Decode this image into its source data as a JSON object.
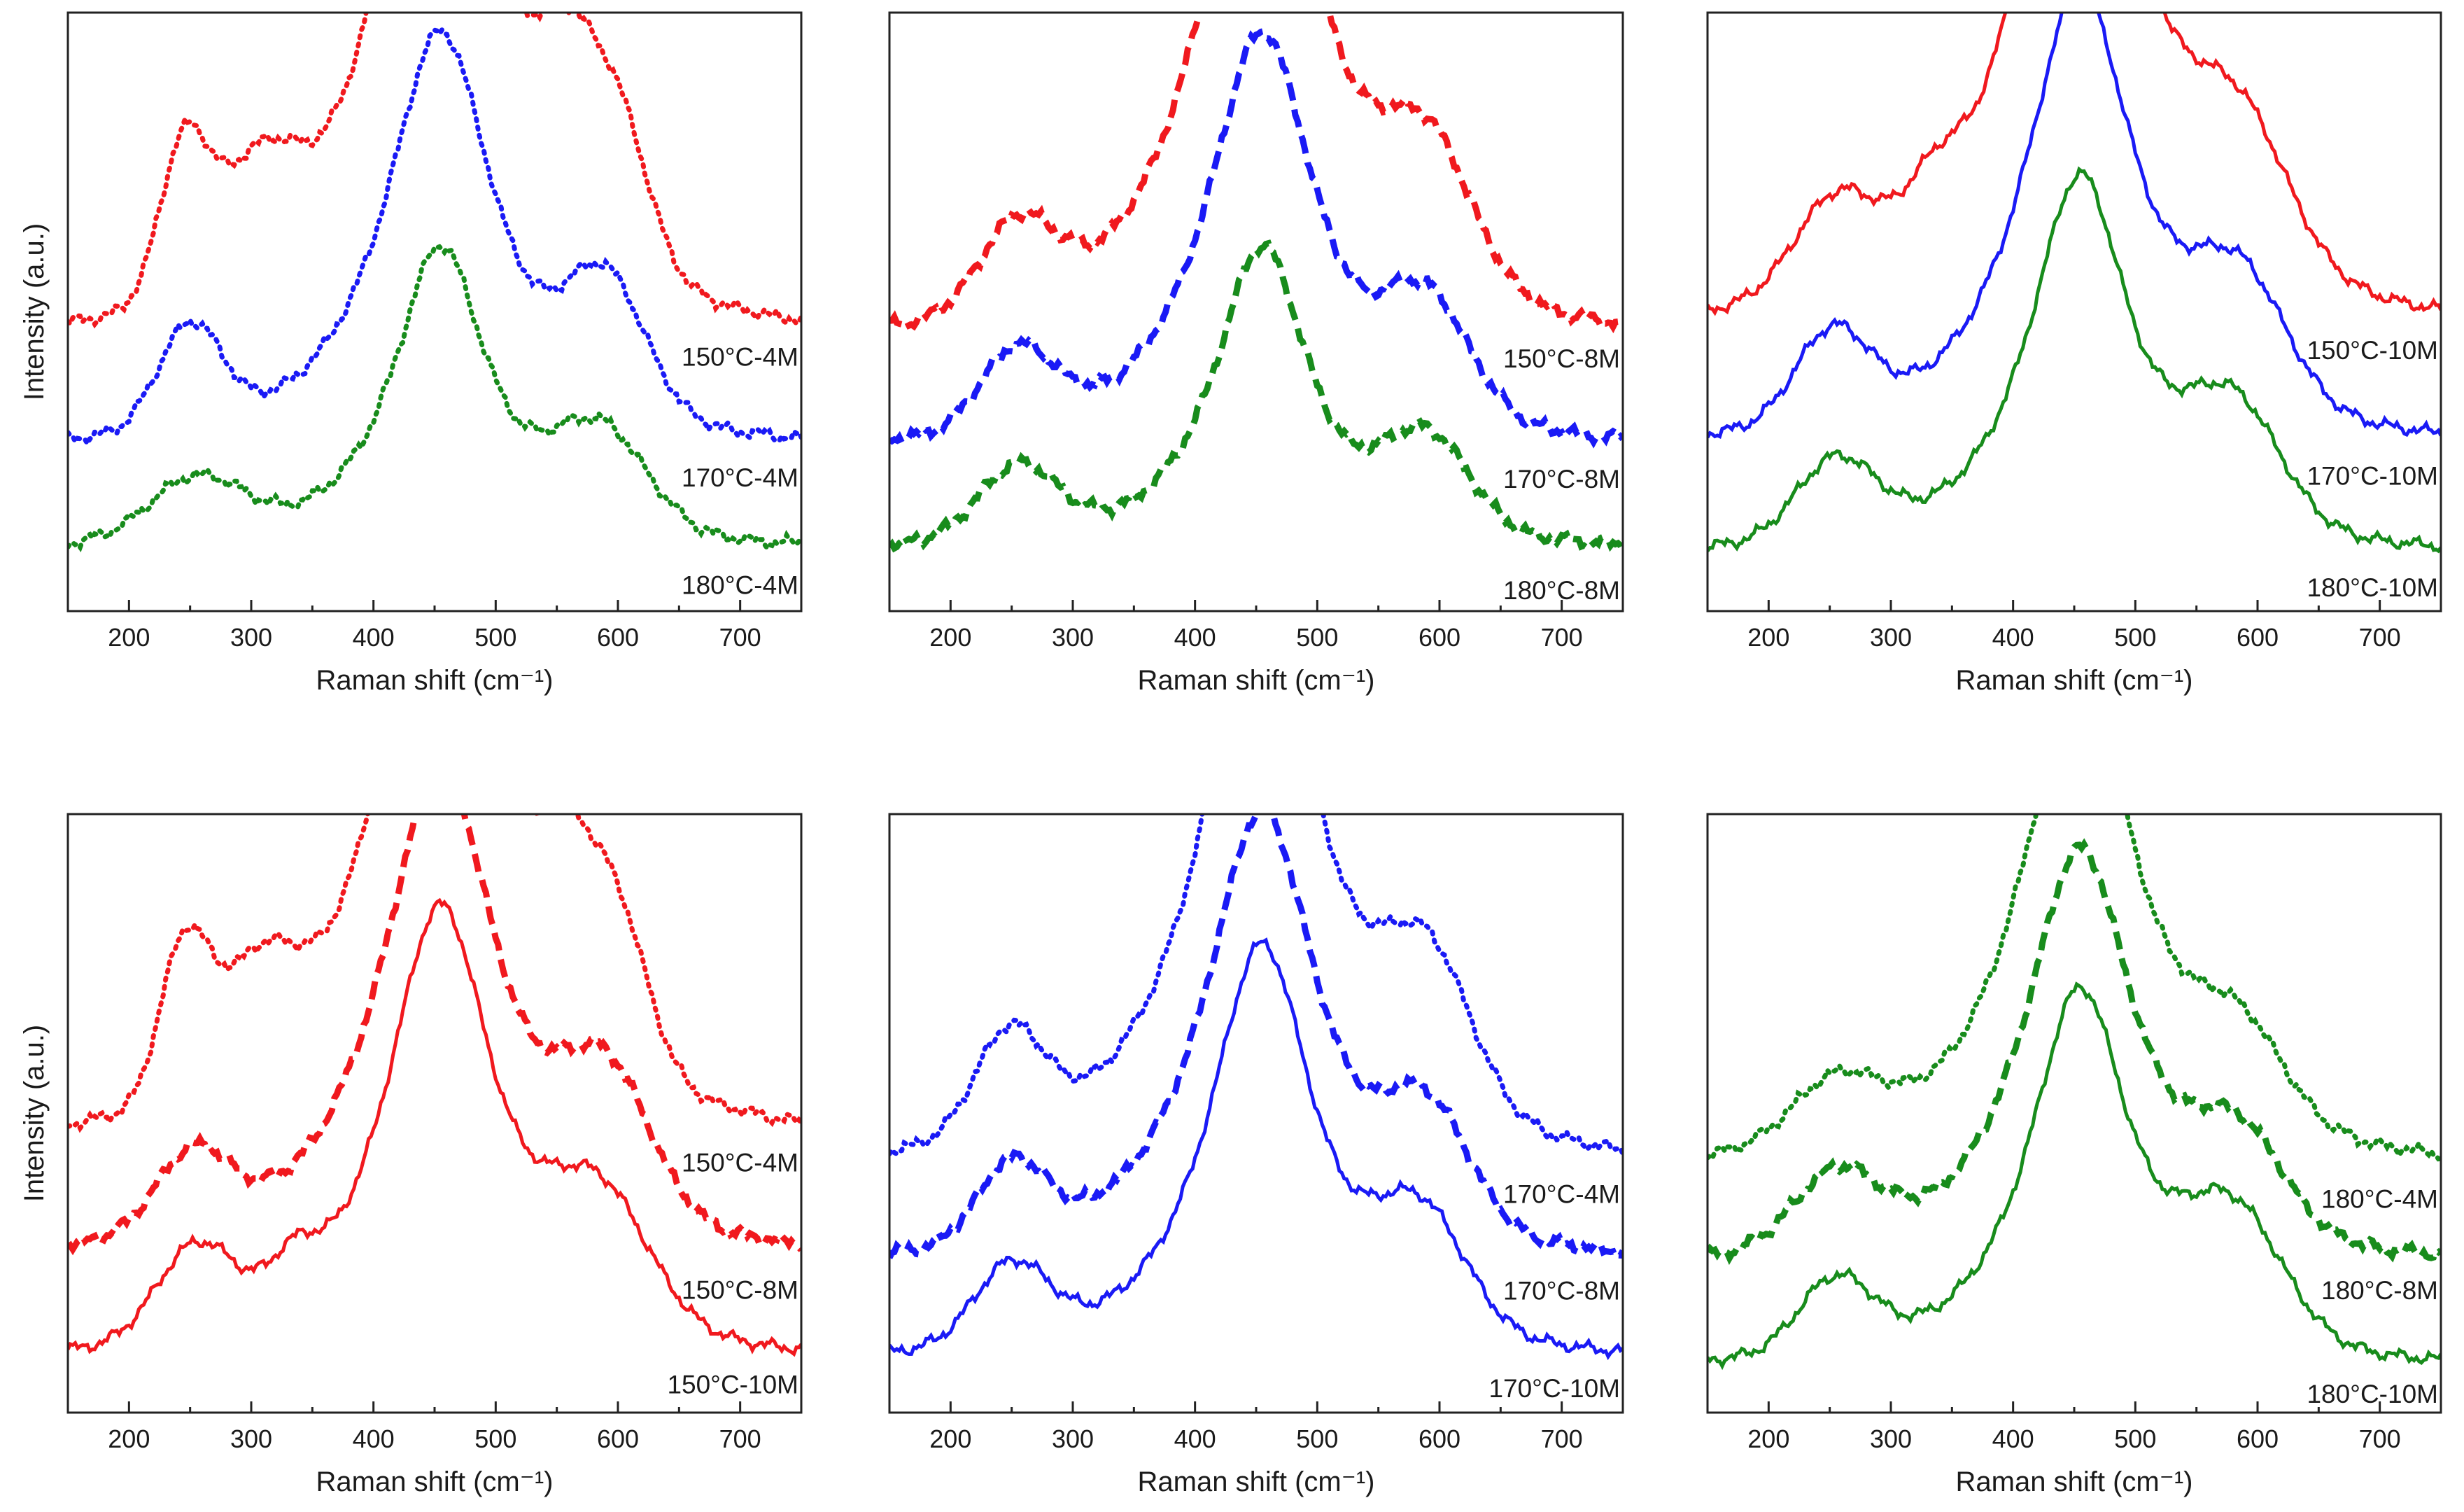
{
  "figure": {
    "description_label": "Raman spectra grid"
  },
  "colors": {
    "red": "#f0191e",
    "blue": "#1a1af5",
    "green": "#188c1c"
  },
  "chart_data": [
    {
      "type": "line",
      "panel": "top-left",
      "xlabel": "Raman shift (cm⁻¹)",
      "ylabel": "Intensity (a.u.)",
      "xlim": [
        150,
        750
      ],
      "ylim": [
        0,
        1
      ],
      "xticks": [
        200,
        300,
        400,
        500,
        600,
        700
      ],
      "series": [
        {
          "name": "150°C-4M",
          "color": "red",
          "style": "dotted",
          "base": 0.44,
          "peaks": [
            {
              "x": 245,
              "h": 0.25,
              "w": 20
            },
            {
              "x": 305,
              "h": 0.18,
              "w": 32
            },
            {
              "x": 555,
              "h": 0.21,
              "w": 22
            },
            {
              "x": 598,
              "h": 0.25,
              "w": 26
            }
          ],
          "core_amp": 0.34,
          "core_w": 62,
          "core_skew": 1.0
        },
        {
          "name": "170°C-4M",
          "color": "blue",
          "style": "dotted",
          "base": 0.265,
          "peaks": [
            {
              "x": 250,
              "h": 0.17,
              "w": 26
            },
            {
              "x": 590,
              "h": 0.21,
              "w": 32
            }
          ],
          "core_amp": 0.22,
          "core_w": 56,
          "core_skew": 1.0
        },
        {
          "name": "180°C-4M",
          "color": "green",
          "style": "dotted",
          "base": 0.1,
          "peaks": [
            {
              "x": 255,
              "h": 0.1,
              "w": 38
            },
            {
              "x": 585,
              "h": 0.16,
              "w": 38
            }
          ],
          "core_amp": 0.16,
          "core_w": 48,
          "core_skew": 1.0
        }
      ]
    },
    {
      "type": "line",
      "panel": "top-middle",
      "xlabel": "Raman shift (cm⁻¹)",
      "ylabel": "",
      "xlim": [
        150,
        750
      ],
      "ylim": [
        0,
        1
      ],
      "xticks": [
        200,
        300,
        400,
        500,
        600,
        700
      ],
      "series": [
        {
          "name": "150°C-8M",
          "color": "red",
          "style": "dashed",
          "base": 0.44,
          "peaks": [
            {
              "x": 255,
              "h": 0.14,
              "w": 30
            },
            {
              "x": 590,
              "h": 0.22,
              "w": 36
            }
          ],
          "core_amp": 0.3,
          "core_w": 62,
          "core_skew": 1.0
        },
        {
          "name": "170°C-8M",
          "color": "blue",
          "style": "dashed",
          "base": 0.265,
          "peaks": [
            {
              "x": 255,
              "h": 0.13,
              "w": 30
            },
            {
              "x": 590,
              "h": 0.18,
              "w": 34
            }
          ],
          "core_amp": 0.22,
          "core_w": 56,
          "core_skew": 1.0
        },
        {
          "name": "180°C-8M",
          "color": "green",
          "style": "dashed",
          "base": 0.1,
          "peaks": [
            {
              "x": 255,
              "h": 0.12,
              "w": 32
            },
            {
              "x": 590,
              "h": 0.15,
              "w": 34
            }
          ],
          "core_amp": 0.16,
          "core_w": 48,
          "core_skew": 1.0
        }
      ]
    },
    {
      "type": "line",
      "panel": "top-right",
      "xlabel": "Raman shift (cm⁻¹)",
      "ylabel": "",
      "xlim": [
        150,
        750
      ],
      "ylim": [
        0,
        1
      ],
      "xticks": [
        200,
        300,
        400,
        500,
        600,
        700
      ],
      "series": [
        {
          "name": "150°C-10M",
          "color": "red",
          "style": "solid",
          "base": 0.46,
          "peaks": [
            {
              "x": 255,
              "h": 0.15,
              "w": 34
            },
            {
              "x": 335,
              "h": 0.08,
              "w": 22
            },
            {
              "x": 585,
              "h": 0.22,
              "w": 40
            }
          ],
          "core_amp": 0.33,
          "core_w": 62,
          "core_skew": 1.0
        },
        {
          "name": "170°C-10M",
          "color": "blue",
          "style": "solid",
          "base": 0.27,
          "peaks": [
            {
              "x": 252,
              "h": 0.15,
              "w": 30
            },
            {
              "x": 585,
              "h": 0.2,
              "w": 38
            }
          ],
          "core_amp": 0.24,
          "core_w": 58,
          "core_skew": 1.0
        },
        {
          "name": "180°C-10M",
          "color": "green",
          "style": "solid",
          "base": 0.09,
          "peaks": [
            {
              "x": 255,
              "h": 0.13,
              "w": 32
            },
            {
              "x": 580,
              "h": 0.19,
              "w": 38
            }
          ],
          "core_amp": 0.2,
          "core_w": 52,
          "core_skew": 1.0
        }
      ]
    },
    {
      "type": "line",
      "panel": "bottom-left",
      "xlabel": "Raman shift (cm⁻¹)",
      "ylabel": "Intensity (a.u.)",
      "xlim": [
        150,
        750
      ],
      "ylim": [
        0,
        1
      ],
      "xticks": [
        200,
        300,
        400,
        500,
        600,
        700
      ],
      "series": [
        {
          "name": "150°C-4M",
          "color": "red",
          "style": "dotted",
          "base": 0.44,
          "peaks": [
            {
              "x": 245,
              "h": 0.25,
              "w": 20
            },
            {
              "x": 305,
              "h": 0.18,
              "w": 32
            },
            {
              "x": 555,
              "h": 0.21,
              "w": 22
            },
            {
              "x": 598,
              "h": 0.25,
              "w": 26
            }
          ],
          "core_amp": 0.34,
          "core_w": 62,
          "core_skew": 1.0
        },
        {
          "name": "150°C-8M",
          "color": "red",
          "style": "dashed",
          "base": 0.25,
          "peaks": [
            {
              "x": 252,
              "h": 0.13,
              "w": 30
            },
            {
              "x": 590,
              "h": 0.22,
              "w": 36
            }
          ],
          "core_amp": 0.26,
          "core_w": 60,
          "core_skew": 1.0
        },
        {
          "name": "150°C-10M",
          "color": "red",
          "style": "solid",
          "base": 0.08,
          "peaks": [
            {
              "x": 255,
              "h": 0.15,
              "w": 32
            },
            {
              "x": 335,
              "h": 0.07,
              "w": 20
            },
            {
              "x": 585,
              "h": 0.2,
              "w": 40
            }
          ],
          "core_amp": 0.24,
          "core_w": 56,
          "core_skew": 1.0
        }
      ]
    },
    {
      "type": "line",
      "panel": "bottom-middle",
      "xlabel": "Raman shift (cm⁻¹)",
      "ylabel": "",
      "xlim": [
        150,
        750
      ],
      "ylim": [
        0,
        1
      ],
      "xticks": [
        200,
        300,
        400,
        500,
        600,
        700
      ],
      "series": [
        {
          "name": "170°C-4M",
          "color": "blue",
          "style": "dotted",
          "base": 0.4,
          "peaks": [
            {
              "x": 248,
              "h": 0.17,
              "w": 28
            },
            {
              "x": 590,
              "h": 0.24,
              "w": 36
            }
          ],
          "core_amp": 0.3,
          "core_w": 62,
          "core_skew": 1.0
        },
        {
          "name": "170°C-8M",
          "color": "blue",
          "style": "dashed",
          "base": 0.24,
          "peaks": [
            {
              "x": 250,
              "h": 0.13,
              "w": 28
            },
            {
              "x": 590,
              "h": 0.18,
              "w": 34
            }
          ],
          "core_amp": 0.24,
          "core_w": 58,
          "core_skew": 1.0
        },
        {
          "name": "170°C-10M",
          "color": "blue",
          "style": "solid",
          "base": 0.08,
          "peaks": [
            {
              "x": 250,
              "h": 0.13,
              "w": 30
            },
            {
              "x": 585,
              "h": 0.18,
              "w": 36
            }
          ],
          "core_amp": 0.22,
          "core_w": 54,
          "core_skew": 1.0
        }
      ]
    },
    {
      "type": "line",
      "panel": "bottom-right",
      "xlabel": "Raman shift (cm⁻¹)",
      "ylabel": "",
      "xlim": [
        150,
        750
      ],
      "ylim": [
        0,
        1
      ],
      "xticks": [
        200,
        300,
        400,
        500,
        600,
        700
      ],
      "series": [
        {
          "name": "180°C-4M",
          "color": "green",
          "style": "dotted",
          "base": 0.4,
          "peaks": [
            {
              "x": 255,
              "h": 0.1,
              "w": 36
            },
            {
              "x": 585,
              "h": 0.14,
              "w": 36
            }
          ],
          "core_amp": 0.26,
          "core_w": 60,
          "core_skew": 1.0
        },
        {
          "name": "180°C-8M",
          "color": "green",
          "style": "dashed",
          "base": 0.24,
          "peaks": [
            {
              "x": 255,
              "h": 0.12,
              "w": 34
            },
            {
              "x": 585,
              "h": 0.15,
              "w": 36
            }
          ],
          "core_amp": 0.22,
          "core_w": 56,
          "core_skew": 1.0
        },
        {
          "name": "180°C-10M",
          "color": "green",
          "style": "solid",
          "base": 0.07,
          "peaks": [
            {
              "x": 255,
              "h": 0.12,
              "w": 30
            },
            {
              "x": 580,
              "h": 0.2,
              "w": 40
            }
          ],
          "core_amp": 0.2,
          "core_w": 52,
          "core_skew": 1.0
        }
      ]
    }
  ]
}
